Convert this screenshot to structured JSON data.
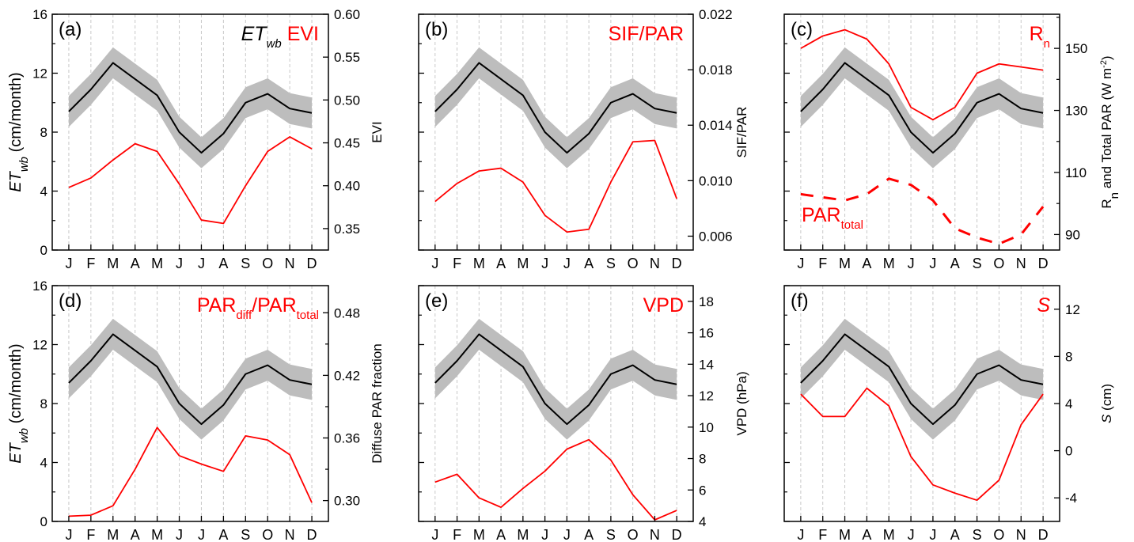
{
  "months": [
    "J",
    "F",
    "M",
    "A",
    "M",
    "J",
    "J",
    "A",
    "S",
    "O",
    "N",
    "D"
  ],
  "colors": {
    "et": "#000000",
    "band": "#bdbdbd",
    "driver": "#ff0000",
    "grid": "#c8c8c8"
  },
  "left_axis": {
    "label_main": "ET",
    "label_sub": "wb",
    "label_unit": " (cm/month)",
    "ticks": [
      0,
      4,
      8,
      12,
      16
    ],
    "range": [
      0,
      16
    ]
  },
  "et_wb": [
    9.4,
    10.9,
    12.7,
    11.6,
    10.5,
    8.0,
    6.6,
    7.9,
    10.0,
    10.6,
    9.6,
    9.3
  ],
  "et_band_halfwidth": 1.05,
  "chart_data": [
    {
      "type": "line",
      "panel": "(a)",
      "legend": [
        {
          "text": "ET",
          "sub": "wb",
          "italic": true,
          "color": "#000000"
        },
        {
          "text": "EVI",
          "color": "#ff0000"
        }
      ],
      "x": [
        "J",
        "F",
        "M",
        "A",
        "M",
        "J",
        "J",
        "A",
        "S",
        "O",
        "N",
        "D"
      ],
      "series": [
        {
          "name": "ETwb",
          "axis": "left",
          "values": [
            9.4,
            10.9,
            12.7,
            11.6,
            10.5,
            8.0,
            6.6,
            7.9,
            10.0,
            10.6,
            9.6,
            9.3
          ]
        },
        {
          "name": "EVI",
          "axis": "right",
          "values": [
            0.398,
            0.409,
            0.43,
            0.449,
            0.44,
            0.402,
            0.36,
            0.356,
            0.4,
            0.44,
            0.457,
            0.443
          ]
        }
      ],
      "right_axis": {
        "label": "EVI",
        "range": [
          0.325,
          0.6
        ],
        "ticks": [
          0.35,
          0.4,
          0.45,
          0.5,
          0.55,
          0.6
        ],
        "tick_labels": [
          "0.35",
          "0.40",
          "0.45",
          "0.50",
          "0.55",
          "0.60"
        ]
      }
    },
    {
      "type": "line",
      "panel": "(b)",
      "legend": [
        {
          "text": "SIF/PAR",
          "color": "#ff0000"
        }
      ],
      "x": [
        "J",
        "F",
        "M",
        "A",
        "M",
        "J",
        "J",
        "A",
        "S",
        "O",
        "N",
        "D"
      ],
      "series": [
        {
          "name": "ETwb",
          "axis": "left",
          "values": [
            9.4,
            10.9,
            12.7,
            11.6,
            10.5,
            8.0,
            6.6,
            7.9,
            10.0,
            10.6,
            9.6,
            9.3
          ]
        },
        {
          "name": "SIF/PAR",
          "axis": "right",
          "values": [
            0.0085,
            0.0098,
            0.0107,
            0.0109,
            0.0099,
            0.0075,
            0.0063,
            0.0065,
            0.0099,
            0.0128,
            0.0129,
            0.0087
          ]
        }
      ],
      "right_axis": {
        "label": "SIF/PAR",
        "range": [
          0.005,
          0.022
        ],
        "ticks": [
          0.006,
          0.01,
          0.014,
          0.018,
          0.022
        ],
        "tick_labels": [
          "0.006",
          "0.010",
          "0.014",
          "0.018",
          "0.022"
        ]
      }
    },
    {
      "type": "line",
      "panel": "(c)",
      "legend": [
        {
          "text": "R",
          "sub": "n",
          "color": "#ff0000"
        }
      ],
      "annotation": {
        "text": "PAR",
        "sub": "total",
        "color": "#ff0000"
      },
      "x": [
        "J",
        "F",
        "M",
        "A",
        "M",
        "J",
        "J",
        "A",
        "S",
        "O",
        "N",
        "D"
      ],
      "series": [
        {
          "name": "ETwb",
          "axis": "left",
          "values": [
            9.4,
            10.9,
            12.7,
            11.6,
            10.5,
            8.0,
            6.6,
            7.9,
            10.0,
            10.6,
            9.6,
            9.3
          ]
        },
        {
          "name": "Rn",
          "axis": "right",
          "values": [
            150,
            154,
            156,
            153,
            145,
            131,
            127,
            131,
            142,
            145,
            144,
            143
          ]
        },
        {
          "name": "PARtotal",
          "axis": "right",
          "dashed": true,
          "values": [
            103,
            102,
            101,
            103,
            108,
            106,
            101,
            92,
            89,
            87,
            90,
            99
          ]
        }
      ],
      "right_axis": {
        "label": "R",
        "label_sub": "n",
        "label_tail": " and Total PAR (W m",
        "label_sup": "-2",
        "label_end": ")",
        "range": [
          85,
          161
        ],
        "ticks": [
          90,
          110,
          130,
          150
        ],
        "minor_ticks": [
          100,
          120,
          140,
          160
        ],
        "tick_labels": [
          "90",
          "110",
          "130",
          "150"
        ]
      }
    },
    {
      "type": "line",
      "panel": "(d)",
      "legend": [
        {
          "text": "PAR",
          "sub": "diff",
          "color": "#ff0000"
        },
        {
          "text": "/PAR",
          "sub": "total",
          "color": "#ff0000"
        }
      ],
      "x": [
        "J",
        "F",
        "M",
        "A",
        "M",
        "J",
        "J",
        "A",
        "S",
        "O",
        "N",
        "D"
      ],
      "series": [
        {
          "name": "ETwb",
          "axis": "left",
          "values": [
            9.4,
            10.9,
            12.7,
            11.6,
            10.5,
            8.0,
            6.6,
            7.9,
            10.0,
            10.6,
            9.6,
            9.3
          ]
        },
        {
          "name": "PARdiff/PARtotal",
          "axis": "right",
          "values": [
            0.285,
            0.286,
            0.295,
            0.33,
            0.37,
            0.343,
            0.335,
            0.328,
            0.362,
            0.358,
            0.344,
            0.298
          ]
        }
      ],
      "right_axis": {
        "label": "Diffuse PAR fraction",
        "range": [
          0.28,
          0.506
        ],
        "ticks": [
          0.3,
          0.36,
          0.42,
          0.48
        ],
        "minor_ticks": [
          0.33,
          0.39,
          0.45
        ],
        "tick_labels": [
          "0.30",
          "0.36",
          "0.42",
          "0.48"
        ]
      }
    },
    {
      "type": "line",
      "panel": "(e)",
      "legend": [
        {
          "text": "VPD",
          "color": "#ff0000"
        }
      ],
      "x": [
        "J",
        "F",
        "M",
        "A",
        "M",
        "J",
        "J",
        "A",
        "S",
        "O",
        "N",
        "D"
      ],
      "series": [
        {
          "name": "ETwb",
          "axis": "left",
          "values": [
            9.4,
            10.9,
            12.7,
            11.6,
            10.5,
            8.0,
            6.6,
            7.9,
            10.0,
            10.6,
            9.6,
            9.3
          ]
        },
        {
          "name": "VPD",
          "axis": "right",
          "values": [
            6.5,
            7.0,
            5.5,
            4.9,
            6.1,
            7.2,
            8.6,
            9.2,
            7.9,
            5.7,
            4.1,
            4.7
          ]
        }
      ],
      "right_axis": {
        "label": "VPD (hPa)",
        "range": [
          4,
          19
        ],
        "ticks": [
          4,
          6,
          8,
          10,
          12,
          14,
          16,
          18
        ],
        "tick_labels": [
          "4",
          "6",
          "8",
          "10",
          "12",
          "14",
          "16",
          "18"
        ]
      }
    },
    {
      "type": "line",
      "panel": "(f)",
      "legend": [
        {
          "text": "S",
          "italic": true,
          "color": "#ff0000"
        }
      ],
      "x": [
        "J",
        "F",
        "M",
        "A",
        "M",
        "J",
        "J",
        "A",
        "S",
        "O",
        "N",
        "D"
      ],
      "series": [
        {
          "name": "ETwb",
          "axis": "left",
          "values": [
            9.4,
            10.9,
            12.7,
            11.6,
            10.5,
            8.0,
            6.6,
            7.9,
            10.0,
            10.6,
            9.6,
            9.3
          ]
        },
        {
          "name": "S",
          "axis": "right",
          "values": [
            4.8,
            2.9,
            2.9,
            5.3,
            3.8,
            -0.5,
            -2.9,
            -3.6,
            -4.2,
            -2.5,
            2.2,
            4.8
          ]
        }
      ],
      "right_axis": {
        "label": "S",
        "label_italic": true,
        "label_tail": " (cm)",
        "range": [
          -6,
          14
        ],
        "ticks": [
          -4,
          0,
          4,
          8,
          12
        ],
        "tick_labels": [
          "-4",
          "0",
          "4",
          "8",
          "12"
        ]
      }
    }
  ]
}
